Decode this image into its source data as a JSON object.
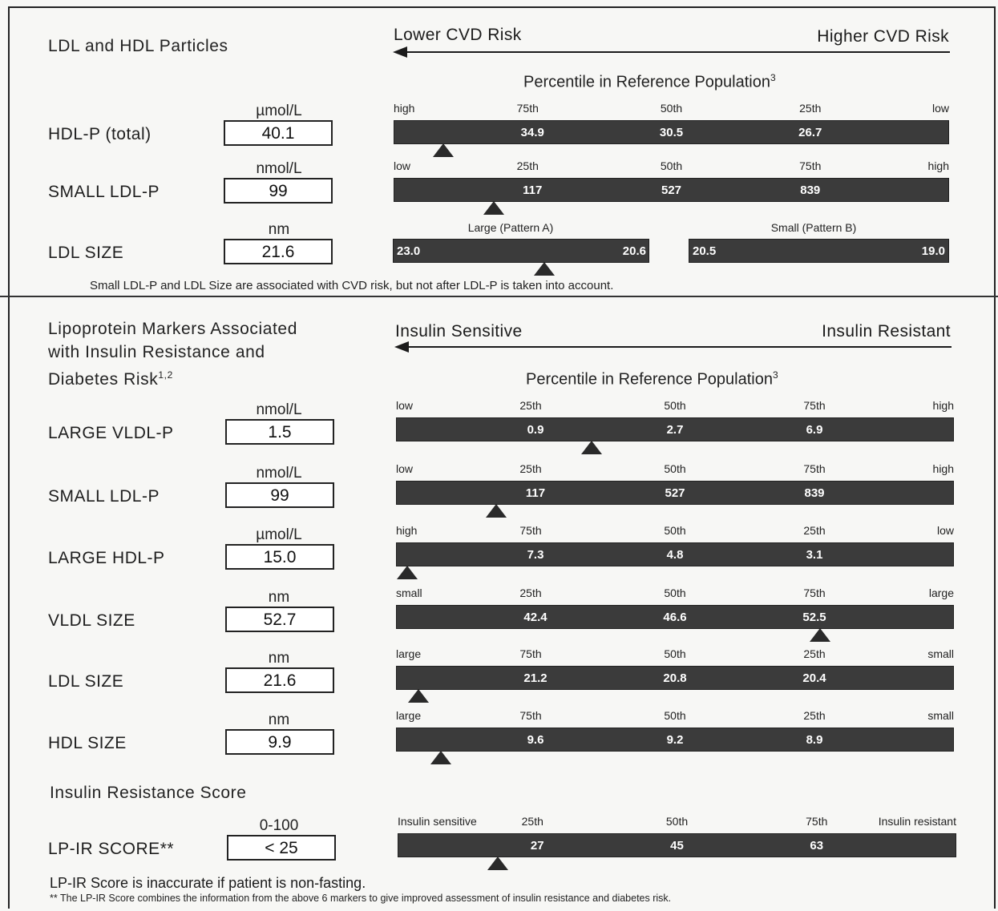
{
  "section1": {
    "title": "LDL and HDL Particles",
    "risk_low_label": "Lower CVD Risk",
    "risk_high_label": "Higher CVD Risk",
    "percentile_title": "Percentile in Reference Population",
    "percentile_sup": "3",
    "rows": [
      {
        "label": "HDL-P (total)",
        "unit": "µmol/L",
        "value": "40.1",
        "ticks": [
          "high",
          "75th",
          "50th",
          "25th",
          "low"
        ],
        "bar_values": [
          "34.9",
          "30.5",
          "26.7"
        ],
        "marker_fraction": 0.09
      },
      {
        "label": "SMALL LDL-P",
        "unit": "nmol/L",
        "value": "99",
        "ticks": [
          "low",
          "25th",
          "50th",
          "75th",
          "high"
        ],
        "bar_values": [
          "117",
          "527",
          "839"
        ],
        "marker_fraction": 0.18
      },
      {
        "label": "LDL SIZE",
        "unit": "nm",
        "value": "21.6",
        "pattern_a_label": "Large (Pattern A)",
        "pattern_b_label": "Small (Pattern B)",
        "pattern_a_values": [
          "23.0",
          "20.6"
        ],
        "pattern_b_values": [
          "20.5",
          "19.0"
        ],
        "marker_fraction": 0.59
      }
    ],
    "note": "Small LDL-P and LDL Size are associated with CVD risk, but not after LDL-P is taken into account."
  },
  "section2": {
    "title_lines": [
      "Lipoprotein Markers Associated",
      "with Insulin Resistance and",
      "Diabetes Risk"
    ],
    "title_sup": "1,2",
    "risk_low_label": "Insulin Sensitive",
    "risk_high_label": "Insulin Resistant",
    "percentile_title": "Percentile in Reference Population",
    "percentile_sup": "3",
    "rows": [
      {
        "label": "LARGE VLDL-P",
        "unit": "nmol/L",
        "value": "1.5",
        "ticks": [
          "low",
          "25th",
          "50th",
          "75th",
          "high"
        ],
        "bar_values": [
          "0.9",
          "2.7",
          "6.9"
        ],
        "marker_fraction": 0.35
      },
      {
        "label": "SMALL LDL-P",
        "unit": "nmol/L",
        "value": "99",
        "ticks": [
          "low",
          "25th",
          "50th",
          "75th",
          "high"
        ],
        "bar_values": [
          "117",
          "527",
          "839"
        ],
        "marker_fraction": 0.18
      },
      {
        "label": "LARGE HDL-P",
        "unit": "µmol/L",
        "value": "15.0",
        "ticks": [
          "high",
          "75th",
          "50th",
          "25th",
          "low"
        ],
        "bar_values": [
          "7.3",
          "4.8",
          "3.1"
        ],
        "marker_fraction": 0.02
      },
      {
        "label": "VLDL SIZE",
        "unit": "nm",
        "value": "52.7",
        "ticks": [
          "small",
          "25th",
          "50th",
          "75th",
          "large"
        ],
        "bar_values": [
          "42.4",
          "46.6",
          "52.5"
        ],
        "marker_fraction": 0.76
      },
      {
        "label": "LDL SIZE",
        "unit": "nm",
        "value": "21.6",
        "ticks": [
          "large",
          "75th",
          "50th",
          "25th",
          "small"
        ],
        "bar_values": [
          "21.2",
          "20.8",
          "20.4"
        ],
        "marker_fraction": 0.04
      },
      {
        "label": "HDL SIZE",
        "unit": "nm",
        "value": "9.9",
        "ticks": [
          "large",
          "75th",
          "50th",
          "25th",
          "small"
        ],
        "bar_values": [
          "9.6",
          "9.2",
          "8.9"
        ],
        "marker_fraction": 0.08
      }
    ],
    "ir_title": "Insulin Resistance Score",
    "ir_row": {
      "label": "LP-IR SCORE**",
      "unit": "0-100",
      "value": "< 25",
      "ticks": [
        "Insulin sensitive",
        "25th",
        "50th",
        "75th",
        "Insulin resistant"
      ],
      "bar_values": [
        "27",
        "45",
        "63"
      ],
      "marker_fraction": 0.18
    },
    "footnote1": "LP-IR Score is inaccurate if patient is non-fasting.",
    "footnote2": "** The LP-IR Score combines the information from the above 6 markers to give improved assessment of insulin resistance and diabetes risk."
  }
}
